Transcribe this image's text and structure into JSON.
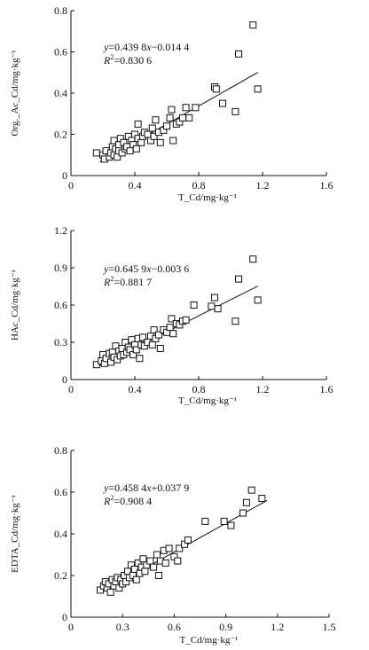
{
  "chart_data": [
    {
      "type": "scatter",
      "xlabel": "T_Cd/mg·kg⁻¹",
      "ylabel": "Org._Ac_Cd/mg·kg⁻¹",
      "xlim": [
        0,
        1.6
      ],
      "ylim": [
        0,
        0.8
      ],
      "xticks": [
        "0",
        "0.4",
        "0.8",
        "1.2",
        "1.6"
      ],
      "yticks": [
        "0",
        "0.2",
        "0.4",
        "0.6",
        "0.8"
      ],
      "equation": {
        "y": "y",
        "eq": "=0.439 8",
        "x": "x",
        "rest": "−0.014 4"
      },
      "r2": {
        "r": "R",
        "sup": "2",
        "val": "=0.830 6"
      },
      "fit": {
        "slope": 0.4398,
        "intercept": -0.0144,
        "x_range": [
          0.18,
          1.17
        ]
      },
      "grid": false,
      "marker": "open-square",
      "points": [
        [
          0.16,
          0.11
        ],
        [
          0.2,
          0.1
        ],
        [
          0.21,
          0.08
        ],
        [
          0.22,
          0.12
        ],
        [
          0.24,
          0.09
        ],
        [
          0.25,
          0.11
        ],
        [
          0.26,
          0.14
        ],
        [
          0.27,
          0.1
        ],
        [
          0.27,
          0.17
        ],
        [
          0.28,
          0.13
        ],
        [
          0.29,
          0.09
        ],
        [
          0.3,
          0.12
        ],
        [
          0.3,
          0.15
        ],
        [
          0.31,
          0.18
        ],
        [
          0.32,
          0.11
        ],
        [
          0.33,
          0.16
        ],
        [
          0.34,
          0.13
        ],
        [
          0.35,
          0.14
        ],
        [
          0.36,
          0.19
        ],
        [
          0.37,
          0.12
        ],
        [
          0.38,
          0.17
        ],
        [
          0.39,
          0.15
        ],
        [
          0.4,
          0.2
        ],
        [
          0.41,
          0.13
        ],
        [
          0.42,
          0.18
        ],
        [
          0.42,
          0.25
        ],
        [
          0.44,
          0.16
        ],
        [
          0.45,
          0.19
        ],
        [
          0.46,
          0.21
        ],
        [
          0.48,
          0.2
        ],
        [
          0.5,
          0.17
        ],
        [
          0.51,
          0.23
        ],
        [
          0.52,
          0.19
        ],
        [
          0.53,
          0.27
        ],
        [
          0.55,
          0.21
        ],
        [
          0.56,
          0.16
        ],
        [
          0.58,
          0.22
        ],
        [
          0.6,
          0.24
        ],
        [
          0.62,
          0.28
        ],
        [
          0.63,
          0.32
        ],
        [
          0.64,
          0.17
        ],
        [
          0.66,
          0.25
        ],
        [
          0.68,
          0.26
        ],
        [
          0.7,
          0.28
        ],
        [
          0.72,
          0.33
        ],
        [
          0.74,
          0.28
        ],
        [
          0.78,
          0.33
        ],
        [
          0.9,
          0.43
        ],
        [
          0.91,
          0.42
        ],
        [
          0.95,
          0.35
        ],
        [
          1.03,
          0.31
        ],
        [
          1.05,
          0.59
        ],
        [
          1.14,
          0.73
        ],
        [
          1.17,
          0.42
        ]
      ]
    },
    {
      "type": "scatter",
      "xlabel": "T_Cd/mg·kg⁻¹",
      "ylabel": "HAc_Cd/mg·kg⁻¹",
      "xlim": [
        0,
        1.6
      ],
      "ylim": [
        0,
        1.2
      ],
      "xticks": [
        "0",
        "0.4",
        "0.8",
        "1.2",
        "1.6"
      ],
      "yticks": [
        "0",
        "0.3",
        "0.6",
        "0.9",
        "1.2"
      ],
      "equation": {
        "y": "y",
        "eq": "=0.645 9",
        "x": "x",
        "rest": "−0.003 6"
      },
      "r2": {
        "r": "R",
        "sup": "2",
        "val": "=0.881 7"
      },
      "fit": {
        "slope": 0.6459,
        "intercept": -0.0036,
        "x_range": [
          0.18,
          1.17
        ]
      },
      "grid": false,
      "marker": "open-square",
      "points": [
        [
          0.16,
          0.12
        ],
        [
          0.19,
          0.15
        ],
        [
          0.2,
          0.2
        ],
        [
          0.21,
          0.13
        ],
        [
          0.22,
          0.17
        ],
        [
          0.24,
          0.21
        ],
        [
          0.25,
          0.14
        ],
        [
          0.26,
          0.22
        ],
        [
          0.27,
          0.18
        ],
        [
          0.28,
          0.27
        ],
        [
          0.29,
          0.16
        ],
        [
          0.3,
          0.23
        ],
        [
          0.31,
          0.19
        ],
        [
          0.32,
          0.25
        ],
        [
          0.33,
          0.2
        ],
        [
          0.34,
          0.3
        ],
        [
          0.35,
          0.22
        ],
        [
          0.36,
          0.26
        ],
        [
          0.37,
          0.24
        ],
        [
          0.38,
          0.32
        ],
        [
          0.39,
          0.2
        ],
        [
          0.4,
          0.28
        ],
        [
          0.41,
          0.24
        ],
        [
          0.42,
          0.33
        ],
        [
          0.43,
          0.17
        ],
        [
          0.44,
          0.28
        ],
        [
          0.45,
          0.34
        ],
        [
          0.46,
          0.27
        ],
        [
          0.48,
          0.3
        ],
        [
          0.5,
          0.35
        ],
        [
          0.51,
          0.28
        ],
        [
          0.52,
          0.4
        ],
        [
          0.53,
          0.33
        ],
        [
          0.55,
          0.36
        ],
        [
          0.56,
          0.25
        ],
        [
          0.58,
          0.4
        ],
        [
          0.6,
          0.38
        ],
        [
          0.62,
          0.42
        ],
        [
          0.63,
          0.49
        ],
        [
          0.64,
          0.37
        ],
        [
          0.66,
          0.45
        ],
        [
          0.68,
          0.44
        ],
        [
          0.7,
          0.47
        ],
        [
          0.72,
          0.48
        ],
        [
          0.77,
          0.6
        ],
        [
          0.88,
          0.59
        ],
        [
          0.9,
          0.66
        ],
        [
          0.92,
          0.57
        ],
        [
          1.03,
          0.47
        ],
        [
          1.05,
          0.81
        ],
        [
          1.14,
          0.97
        ],
        [
          1.17,
          0.64
        ]
      ]
    },
    {
      "type": "scatter",
      "xlabel": "T_Cd/mg·kg⁻¹",
      "ylabel": "EDTA_Cd/mg·kg⁻¹",
      "xlim": [
        0,
        1.5
      ],
      "ylim": [
        0,
        0.8
      ],
      "xticks": [
        "0",
        "0.3",
        "0.6",
        "0.9",
        "1.2",
        "1.5"
      ],
      "yticks": [
        "0",
        "0.2",
        "0.4",
        "0.6",
        "0.8"
      ],
      "equation": {
        "y": "y",
        "eq": "=0.458 4",
        "x": "x",
        "rest": "+0.037 9"
      },
      "r2": {
        "r": "R",
        "sup": "2",
        "val": "=0.908 4"
      },
      "fit": {
        "slope": 0.4584,
        "intercept": 0.0379,
        "x_range": [
          0.17,
          1.14
        ]
      },
      "grid": false,
      "marker": "open-square",
      "points": [
        [
          0.17,
          0.13
        ],
        [
          0.19,
          0.15
        ],
        [
          0.2,
          0.17
        ],
        [
          0.21,
          0.14
        ],
        [
          0.22,
          0.16
        ],
        [
          0.23,
          0.12
        ],
        [
          0.24,
          0.18
        ],
        [
          0.25,
          0.15
        ],
        [
          0.26,
          0.17
        ],
        [
          0.27,
          0.19
        ],
        [
          0.28,
          0.14
        ],
        [
          0.29,
          0.18
        ],
        [
          0.3,
          0.16
        ],
        [
          0.31,
          0.2
        ],
        [
          0.32,
          0.17
        ],
        [
          0.33,
          0.22
        ],
        [
          0.34,
          0.19
        ],
        [
          0.35,
          0.25
        ],
        [
          0.36,
          0.2
        ],
        [
          0.37,
          0.23
        ],
        [
          0.38,
          0.18
        ],
        [
          0.39,
          0.26
        ],
        [
          0.4,
          0.21
        ],
        [
          0.41,
          0.24
        ],
        [
          0.42,
          0.28
        ],
        [
          0.43,
          0.22
        ],
        [
          0.44,
          0.25
        ],
        [
          0.46,
          0.27
        ],
        [
          0.48,
          0.24
        ],
        [
          0.5,
          0.3
        ],
        [
          0.51,
          0.2
        ],
        [
          0.52,
          0.27
        ],
        [
          0.54,
          0.32
        ],
        [
          0.55,
          0.26
        ],
        [
          0.57,
          0.33
        ],
        [
          0.6,
          0.29
        ],
        [
          0.62,
          0.27
        ],
        [
          0.63,
          0.33
        ],
        [
          0.66,
          0.35
        ],
        [
          0.68,
          0.37
        ],
        [
          0.78,
          0.46
        ],
        [
          0.89,
          0.46
        ],
        [
          0.93,
          0.44
        ],
        [
          1.0,
          0.5
        ],
        [
          1.02,
          0.55
        ],
        [
          1.05,
          0.61
        ],
        [
          1.11,
          0.57
        ]
      ]
    }
  ]
}
